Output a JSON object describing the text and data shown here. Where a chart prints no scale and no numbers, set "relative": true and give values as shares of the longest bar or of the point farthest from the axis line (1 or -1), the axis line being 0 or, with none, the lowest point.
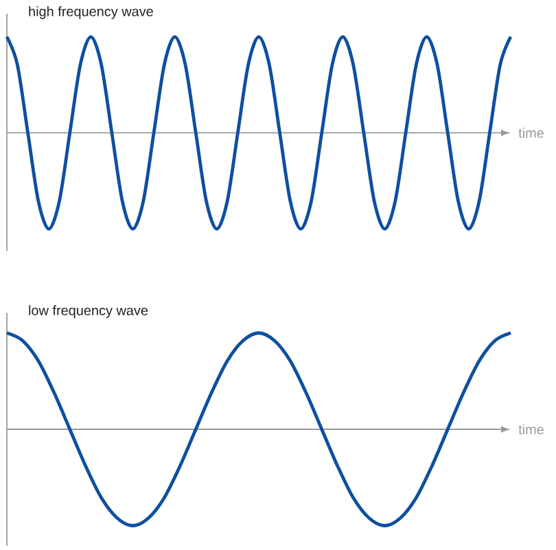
{
  "chart_data": [
    {
      "type": "line",
      "title": "high frequency wave",
      "xlabel": "time",
      "relative": true,
      "categories": [
        null,
        null,
        null,
        null,
        null,
        null,
        null,
        null,
        null,
        null,
        null,
        null,
        null,
        null,
        null,
        null,
        null,
        null,
        null,
        null,
        null,
        null,
        null,
        null,
        null,
        null,
        null,
        null,
        null,
        null,
        null,
        null,
        null,
        null,
        null,
        null,
        null,
        null,
        null,
        null,
        null,
        null,
        null,
        null,
        null,
        null,
        null,
        null,
        null
      ],
      "series": [
        {
          "color": "#0e4fa0",
          "values": [
            1,
            0.71,
            0,
            -0.71,
            -1,
            -0.71,
            0,
            0.71,
            1,
            0.71,
            0,
            -0.71,
            -1,
            -0.71,
            0,
            0.71,
            1,
            0.71,
            0,
            -0.71,
            -1,
            -0.71,
            0,
            0.71,
            1,
            0.71,
            0,
            -0.71,
            -1,
            -0.71,
            0,
            0.71,
            1,
            0.71,
            0,
            -0.71,
            -1,
            -0.71,
            0,
            0.71,
            1,
            0.71,
            0,
            -0.71,
            -1,
            -0.71,
            0,
            0.71,
            1
          ]
        }
      ]
    },
    {
      "type": "line",
      "title": "low frequency wave",
      "xlabel": "time",
      "relative": true,
      "categories": [
        null,
        null,
        null,
        null,
        null,
        null,
        null,
        null,
        null,
        null,
        null,
        null,
        null,
        null,
        null,
        null,
        null,
        null,
        null,
        null,
        null,
        null,
        null,
        null,
        null,
        null,
        null,
        null,
        null,
        null,
        null,
        null,
        null
      ],
      "series": [
        {
          "color": "#0e4fa0",
          "values": [
            1,
            0.92,
            0.71,
            0.38,
            0,
            -0.38,
            -0.71,
            -0.92,
            -1,
            -0.92,
            -0.71,
            -0.38,
            0,
            0.38,
            0.71,
            0.92,
            1,
            0.92,
            0.71,
            0.38,
            0,
            -0.38,
            -0.71,
            -0.92,
            -1,
            -0.92,
            -0.71,
            -0.38,
            0,
            0.38,
            0.71,
            0.92,
            1
          ]
        }
      ]
    }
  ]
}
